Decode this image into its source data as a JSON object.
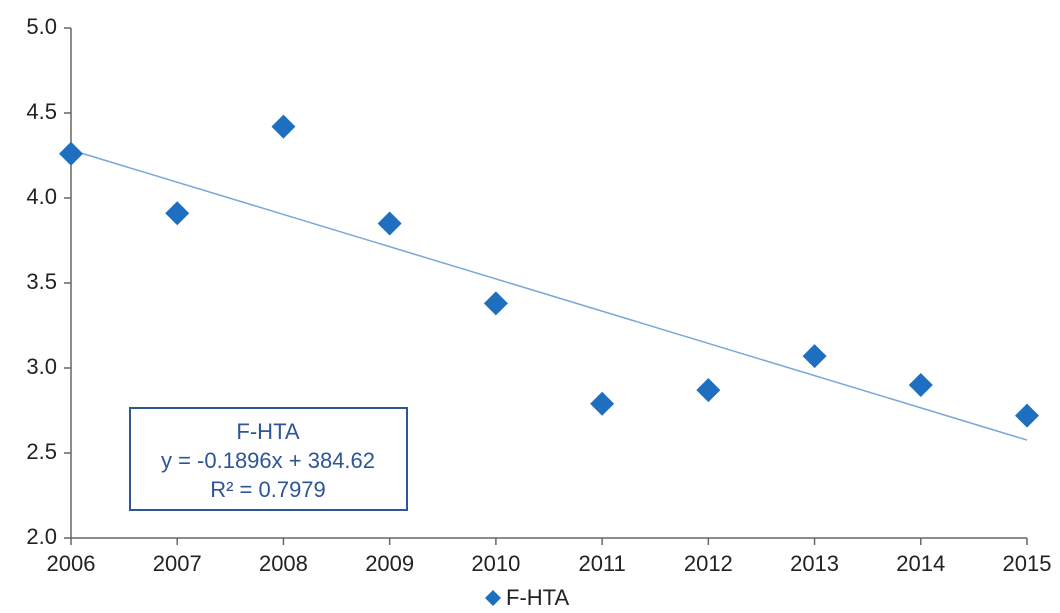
{
  "chart_data": {
    "type": "scatter",
    "x": [
      2006,
      2007,
      2008,
      2009,
      2010,
      2011,
      2012,
      2013,
      2014,
      2015
    ],
    "series": [
      {
        "name": "F-HTA",
        "color": "#1e6fc0",
        "values": [
          4.26,
          3.91,
          4.42,
          3.85,
          3.38,
          2.79,
          2.87,
          3.07,
          2.9,
          2.72
        ]
      }
    ],
    "trendline": {
      "color": "#7aa6d8",
      "slope": -0.1896,
      "intercept": 384.62,
      "name": "F-HTA",
      "equation": "y = -0.1896x + 384.62",
      "r2": "R² = 0.7979"
    },
    "xlim": [
      2006,
      2015
    ],
    "xticks": [
      2006,
      2007,
      2008,
      2009,
      2010,
      2011,
      2012,
      2013,
      2014,
      2015
    ],
    "ylim": [
      2,
      5
    ],
    "yticks": [
      {
        "value": 2,
        "label": "2.0"
      },
      2.5,
      {
        "value": 3,
        "label": "3.0"
      },
      3.5,
      {
        "value": 4,
        "label": "4.0"
      },
      4.5,
      {
        "value": 5,
        "label": "5.0"
      }
    ],
    "grid": false,
    "legend": "bottom"
  }
}
